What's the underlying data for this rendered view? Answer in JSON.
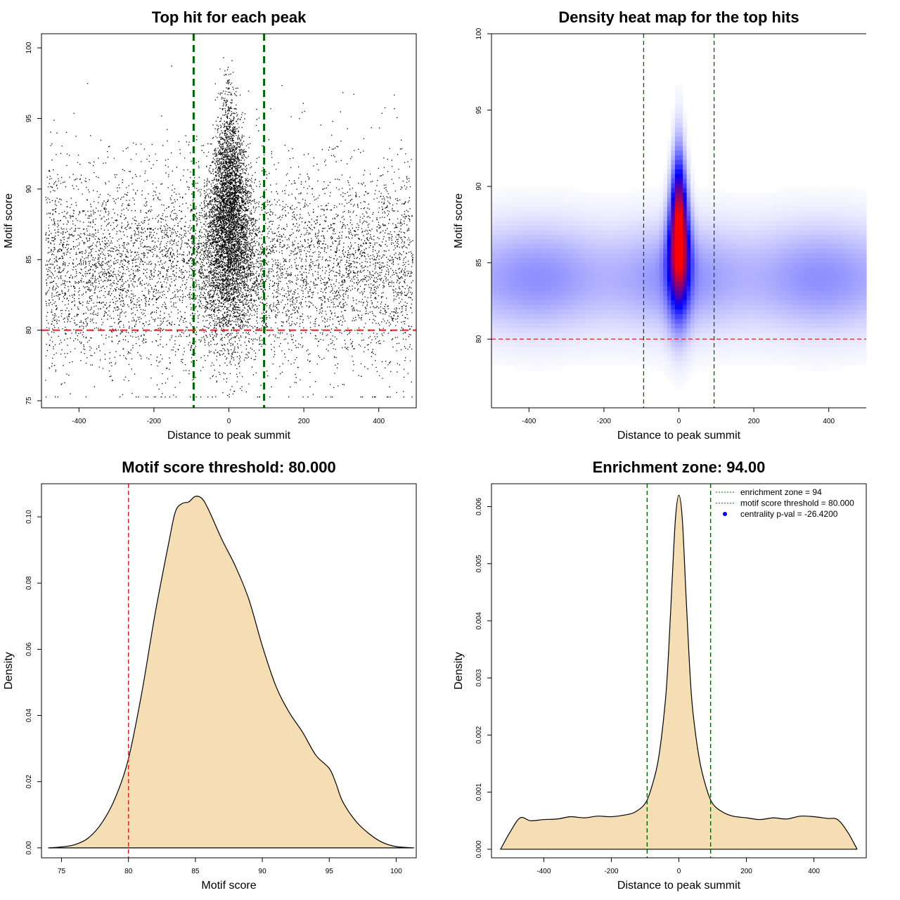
{
  "chart_data": [
    {
      "panel": "top-left",
      "type": "scatter",
      "title": "Top hit for each peak",
      "xlabel": "Distance to peak summit",
      "ylabel": "Motif score",
      "xlim": [
        -500,
        500
      ],
      "ylim": [
        74.5,
        101
      ],
      "xticks": [
        -400,
        -200,
        0,
        200,
        400
      ],
      "yticks": [
        75,
        80,
        85,
        90,
        95,
        100
      ],
      "xtick_labels": [
        "-400",
        "-200",
        "0",
        "200",
        "400"
      ],
      "ytick_labels": [
        "75",
        "80",
        "85",
        "90",
        "95",
        "100"
      ],
      "vlines": [
        -94,
        94
      ],
      "hline": 80,
      "vline_color": "#006400",
      "hline_color": "#e31a1c",
      "point_color": "#000000",
      "distribution": {
        "n_background": 11000,
        "n_central": 9000,
        "background_x_range": [
          -490,
          490
        ],
        "background_y_mean": 84.5,
        "background_y_sd": 3.2,
        "central_x_sd": 38,
        "central_y_mean": 87.5,
        "central_y_sd": 3.9
      }
    },
    {
      "panel": "top-right",
      "type": "heatmap",
      "title": "Density heat map for the top hits",
      "xlabel": "Distance to peak summit",
      "ylabel": "Motif score",
      "xlim": [
        -500,
        500
      ],
      "ylim": [
        75.5,
        100
      ],
      "xticks": [
        -400,
        -200,
        0,
        200,
        400
      ],
      "yticks": [
        80,
        85,
        90,
        95,
        100
      ],
      "xtick_labels": [
        "-400",
        "-200",
        "0",
        "200",
        "400"
      ],
      "ytick_labels": [
        "80",
        "85",
        "90",
        "95",
        "100"
      ],
      "vlines": [
        -94,
        94
      ],
      "hline": 80,
      "colormap": [
        "#ffffff",
        "#0000ff",
        "#ff0000"
      ],
      "peak": {
        "x": 0,
        "y": 87
      }
    },
    {
      "panel": "bottom-left",
      "type": "area",
      "title": "Motif score threshold: 80.000",
      "xlabel": "Motif score",
      "ylabel": "Density",
      "xlim": [
        73.5,
        101.5
      ],
      "ylim": [
        -0.003,
        0.11
      ],
      "xticks": [
        75,
        80,
        85,
        90,
        95,
        100
      ],
      "yticks": [
        0,
        0.02,
        0.04,
        0.06,
        0.08,
        0.1
      ],
      "xtick_labels": [
        "75",
        "80",
        "85",
        "90",
        "95",
        "100"
      ],
      "ytick_labels": [
        "0.00",
        "0.02",
        "0.04",
        "0.06",
        "0.08",
        "0.10"
      ],
      "vline": 80,
      "fill": "#f5deb3",
      "x": [
        74,
        75,
        76,
        77,
        78,
        79,
        80,
        81,
        82,
        83,
        83.5,
        84,
        84.5,
        85,
        85.5,
        86,
        87,
        88,
        89,
        90,
        91,
        92,
        93,
        94,
        95,
        95.5,
        96,
        97,
        98,
        99,
        100,
        101.3
      ],
      "y": [
        0,
        0.0003,
        0.001,
        0.003,
        0.0075,
        0.015,
        0.027,
        0.047,
        0.071,
        0.092,
        0.1015,
        0.104,
        0.1045,
        0.1062,
        0.1055,
        0.102,
        0.093,
        0.085,
        0.075,
        0.061,
        0.049,
        0.041,
        0.035,
        0.028,
        0.024,
        0.0195,
        0.014,
        0.008,
        0.0042,
        0.0016,
        0.0004,
        0
      ]
    },
    {
      "panel": "bottom-right",
      "type": "area",
      "title": "Enrichment zone: 94.00",
      "xlabel": "Distance to peak summit",
      "ylabel": "Density",
      "xlim": [
        -555,
        555
      ],
      "ylim": [
        -0.00015,
        0.0064
      ],
      "xticks": [
        -400,
        -200,
        0,
        200,
        400
      ],
      "yticks": [
        0,
        0.001,
        0.002,
        0.003,
        0.004,
        0.005,
        0.006
      ],
      "xtick_labels": [
        "-400",
        "-200",
        "0",
        "200",
        "400"
      ],
      "ytick_labels": [
        "0.000",
        "0.001",
        "0.002",
        "0.003",
        "0.004",
        "0.005",
        "0.006"
      ],
      "vlines": [
        -94,
        94
      ],
      "fill": "#f5deb3",
      "x": [
        -528,
        -500,
        -470,
        -440,
        -400,
        -360,
        -320,
        -280,
        -240,
        -200,
        -160,
        -130,
        -100,
        -80,
        -60,
        -40,
        -30,
        -20,
        -10,
        0,
        10,
        20,
        30,
        40,
        60,
        80,
        100,
        130,
        160,
        200,
        240,
        280,
        320,
        360,
        400,
        440,
        470,
        500,
        528
      ],
      "y": [
        0,
        0.0003,
        0.00055,
        0.0005,
        0.00052,
        0.00053,
        0.00057,
        0.00055,
        0.00058,
        0.00057,
        0.0006,
        0.00065,
        0.0008,
        0.0011,
        0.0016,
        0.0026,
        0.0035,
        0.0047,
        0.0058,
        0.0062,
        0.0058,
        0.0046,
        0.0034,
        0.0025,
        0.0016,
        0.0011,
        0.0008,
        0.00065,
        0.00058,
        0.00055,
        0.00052,
        0.00055,
        0.00053,
        0.00058,
        0.00057,
        0.00054,
        0.00052,
        0.0003,
        0
      ],
      "legend": {
        "position": "top-right",
        "entries": [
          {
            "label": "enrichment zone = 94",
            "type": "line",
            "color": "#006400"
          },
          {
            "label": "motif score threshold = 80.000",
            "type": "line",
            "color": "#e31a1c"
          },
          {
            "label": "centrality p-val = -26.4200",
            "type": "point",
            "color": "#0000ff"
          }
        ]
      }
    }
  ]
}
